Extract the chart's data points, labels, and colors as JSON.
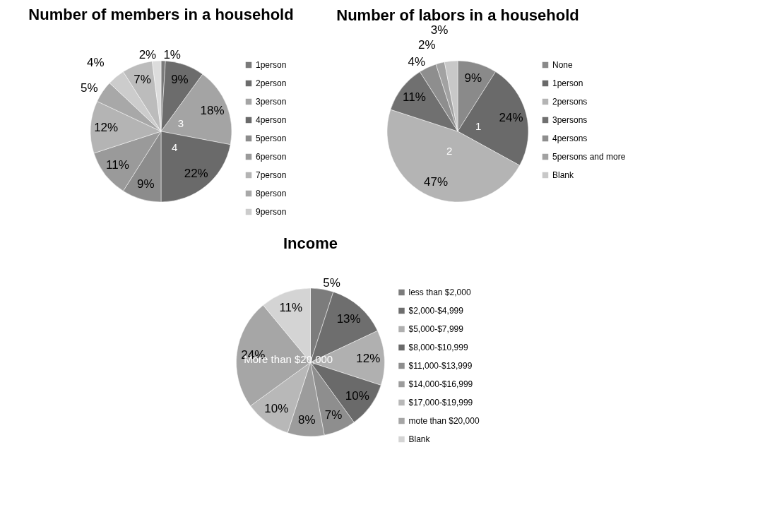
{
  "chart_data": [
    {
      "type": "pie",
      "title": "Number of members in a household",
      "legend": "right",
      "categories": [
        "1person",
        "2person",
        "3person",
        "4person",
        "5person",
        "6person",
        "7person",
        "8person",
        "9person",
        null,
        null
      ],
      "values": [
        1,
        9,
        18,
        22,
        9,
        11,
        12,
        5,
        4,
        7,
        2
      ],
      "value_labels": [
        "1%",
        "9%",
        "18%",
        "22%",
        "9%",
        "11%",
        "12%",
        "5%",
        "4%",
        "7%",
        "2%"
      ],
      "colors": [
        "#7a7a7a",
        "#6c6c6c",
        "#a4a4a4",
        "#6a6a6a",
        "#8c8c8c",
        "#9a9a9a",
        "#b4b4b4",
        "#a8a8a8",
        "#cccccc",
        "#bcbcbc",
        "#dcdcdc"
      ],
      "annotations": [
        {
          "text": "3",
          "x": "3person"
        },
        {
          "text": "4",
          "x": "4person"
        }
      ]
    },
    {
      "type": "pie",
      "title": "Number of labors in a household",
      "legend": "right",
      "categories": [
        "None",
        "1person",
        "2persons",
        "3persons",
        "4persons",
        "5persons and more",
        "Blank"
      ],
      "values": [
        9,
        24,
        47,
        11,
        4,
        2,
        3
      ],
      "value_labels": [
        "9%",
        "24%",
        "47%",
        "11%",
        "4%",
        "2%",
        "3%"
      ],
      "colors": [
        "#8a8a8a",
        "#6a6a6a",
        "#b4b4b4",
        "#707070",
        "#8e8e8e",
        "#a2a2a2",
        "#c8c8c8"
      ],
      "annotations": [
        {
          "text": "1",
          "x": "1person"
        },
        {
          "text": "2",
          "x": "2persons"
        }
      ]
    },
    {
      "type": "pie",
      "title": "Income",
      "legend": "right",
      "categories": [
        "less than $2,000",
        "$2,000-$4,999",
        "$5,000-$7,999",
        "$8,000-$10,999",
        "$11,000-$13,999",
        "$14,000-$16,999",
        "$17,000-$19,999",
        "mote than $20,000",
        "Blank"
      ],
      "values": [
        5,
        13,
        12,
        10,
        7,
        8,
        10,
        24,
        11
      ],
      "value_labels": [
        "5%",
        "13%",
        "12%",
        "10%",
        "7%",
        "8%",
        "10%",
        "24%",
        "11%"
      ],
      "colors": [
        "#7c7c7c",
        "#6e6e6e",
        "#b0b0b0",
        "#6a6a6a",
        "#8e8e8e",
        "#9c9c9c",
        "#b8b8b8",
        "#a6a6a6",
        "#d4d4d4"
      ],
      "annotations": [
        {
          "text": "More than $20,000",
          "x": "mote than $20,000"
        }
      ]
    }
  ]
}
